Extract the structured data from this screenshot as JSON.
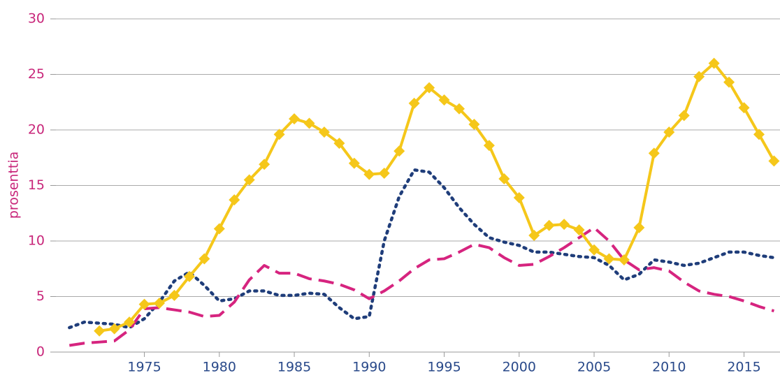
{
  "chart_data": {
    "type": "line",
    "y_label": "prosenttia",
    "x": [
      1970,
      1971,
      1972,
      1973,
      1974,
      1975,
      1976,
      1977,
      1978,
      1979,
      1980,
      1981,
      1982,
      1983,
      1984,
      1985,
      1986,
      1987,
      1988,
      1989,
      1990,
      1991,
      1992,
      1993,
      1994,
      1995,
      1996,
      1997,
      1998,
      1999,
      2000,
      2001,
      2002,
      2003,
      2004,
      2005,
      2006,
      2007,
      2008,
      2009,
      2010,
      2011,
      2012,
      2013,
      2014,
      2015,
      2016,
      2017
    ],
    "series": [
      {
        "color": "#1f3d7a",
        "dash": "dotted",
        "values": [
          2.2,
          2.7,
          2.6,
          2.5,
          2.2,
          3.0,
          4.5,
          6.4,
          7.2,
          6.0,
          4.6,
          4.8,
          5.5,
          5.5,
          5.1,
          5.1,
          5.3,
          5.2,
          4.0,
          3.0,
          3.2,
          10.0,
          14.0,
          16.4,
          16.2,
          14.8,
          13.0,
          11.5,
          10.3,
          9.9,
          9.6,
          9.0,
          9.0,
          8.8,
          8.6,
          8.5,
          7.8,
          6.5,
          7.0,
          8.3,
          8.1,
          7.8,
          8.0,
          8.5,
          9.0,
          9.0,
          8.7,
          8.5
        ]
      },
      {
        "color": "#d6247f",
        "dash": "dashed",
        "values": [
          0.6,
          0.8,
          0.9,
          1.0,
          2.0,
          3.9,
          4.0,
          3.8,
          3.6,
          3.2,
          3.3,
          4.5,
          6.5,
          7.8,
          7.1,
          7.1,
          6.6,
          6.4,
          6.1,
          5.6,
          4.8,
          5.5,
          6.4,
          7.5,
          8.3,
          8.4,
          9.0,
          9.7,
          9.4,
          8.5,
          7.8,
          7.9,
          8.6,
          9.4,
          10.3,
          11.2,
          10.0,
          8.3,
          7.4,
          7.6,
          7.3,
          6.3,
          5.5,
          5.2,
          5.0,
          4.6,
          4.1,
          3.7
        ]
      },
      {
        "color": "#f5c71a",
        "dash": "solid",
        "marker": "diamond",
        "values": [
          null,
          null,
          1.9,
          2.1,
          2.7,
          4.3,
          4.4,
          5.1,
          6.8,
          8.4,
          11.1,
          13.7,
          15.5,
          16.9,
          19.6,
          21.0,
          20.6,
          19.8,
          18.8,
          17.0,
          16.0,
          16.1,
          18.1,
          22.4,
          23.8,
          22.7,
          21.9,
          20.5,
          18.6,
          15.6,
          13.9,
          10.5,
          11.4,
          11.5,
          11.0,
          9.2,
          8.4,
          8.3,
          11.2,
          17.9,
          19.8,
          21.3,
          24.8,
          26.0,
          24.3,
          22.0,
          19.6,
          17.2
        ]
      }
    ],
    "xlim": [
      1969.1,
      2017.4
    ],
    "xticks": [
      1975,
      1980,
      1985,
      1990,
      1995,
      2000,
      2005,
      2010,
      2015
    ],
    "ylim": [
      0,
      30
    ],
    "yticks": [
      0,
      5,
      10,
      15,
      20,
      25,
      30
    ],
    "grid": true
  }
}
